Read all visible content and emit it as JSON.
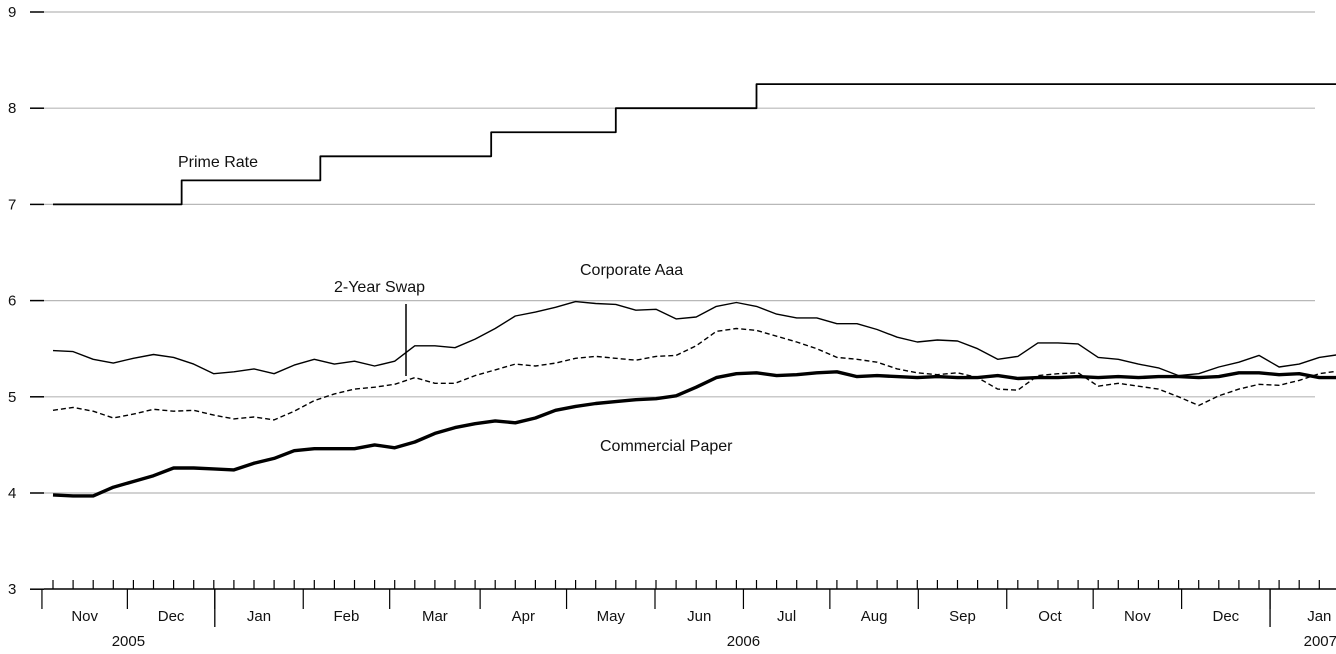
{
  "chart_data": {
    "type": "line",
    "title": "",
    "xlabel": "",
    "ylabel": "",
    "ylim": [
      3,
      9
    ],
    "yticks": [
      "3",
      "4",
      "5",
      "6",
      "7",
      "8",
      "9"
    ],
    "grid": "horizontal",
    "week_count": 67,
    "months": [
      {
        "label": "Nov",
        "start": 0,
        "end": 4.25
      },
      {
        "label": "Dec",
        "start": 4.25,
        "end": 8.6
      },
      {
        "label": "Jan",
        "start": 8.6,
        "end": 13
      },
      {
        "label": "Feb",
        "start": 13,
        "end": 17.3
      },
      {
        "label": "Mar",
        "start": 17.3,
        "end": 21.8
      },
      {
        "label": "Apr",
        "start": 21.8,
        "end": 26.1
      },
      {
        "label": "May",
        "start": 26.1,
        "end": 30.5
      },
      {
        "label": "Jun",
        "start": 30.5,
        "end": 34.9
      },
      {
        "label": "Jul",
        "start": 34.9,
        "end": 39.2
      },
      {
        "label": "Aug",
        "start": 39.2,
        "end": 43.6
      },
      {
        "label": "Sep",
        "start": 43.6,
        "end": 48
      },
      {
        "label": "Oct",
        "start": 48,
        "end": 52.3
      },
      {
        "label": "Nov",
        "start": 52.3,
        "end": 56.7
      },
      {
        "label": "Dec",
        "start": 56.7,
        "end": 61.1
      },
      {
        "label": "Jan",
        "start": 61.1,
        "end": 66
      }
    ],
    "years": [
      {
        "label": "2005",
        "center": 4.3
      },
      {
        "label": "2006",
        "center": 34.9
      },
      {
        "label": "2007",
        "center": 63.6
      }
    ],
    "year_breaks": [
      8.6,
      61.1
    ],
    "series": [
      {
        "name": "Prime Rate",
        "style": "step",
        "color": "#000000",
        "steps": [
          {
            "x": 0,
            "y": 7.0
          },
          {
            "x": 6.4,
            "y": 7.25
          },
          {
            "x": 13.3,
            "y": 7.5
          },
          {
            "x": 21.8,
            "y": 7.75
          },
          {
            "x": 28.0,
            "y": 8.0
          },
          {
            "x": 35.0,
            "y": 8.25
          },
          {
            "x": 65.7,
            "y": 8.25
          }
        ]
      },
      {
        "name": "Corporate Aaa",
        "style": "thin",
        "color": "#000000",
        "values": [
          5.48,
          5.47,
          5.39,
          5.35,
          5.4,
          5.44,
          5.41,
          5.34,
          5.24,
          5.26,
          5.29,
          5.24,
          5.33,
          5.39,
          5.34,
          5.37,
          5.32,
          5.37,
          5.53,
          5.53,
          5.51,
          5.6,
          5.71,
          5.84,
          5.88,
          5.93,
          5.99,
          5.97,
          5.96,
          5.9,
          5.91,
          5.81,
          5.83,
          5.94,
          5.98,
          5.94,
          5.86,
          5.82,
          5.82,
          5.76,
          5.76,
          5.7,
          5.62,
          5.57,
          5.59,
          5.58,
          5.5,
          5.39,
          5.42,
          5.56,
          5.56,
          5.55,
          5.41,
          5.39,
          5.34,
          5.3,
          5.22,
          5.24,
          5.31,
          5.36,
          5.43,
          5.31,
          5.34,
          5.41,
          5.44
        ]
      },
      {
        "name": "2-Year Swap",
        "style": "dashed",
        "color": "#000000",
        "values": [
          4.86,
          4.89,
          4.85,
          4.78,
          4.82,
          4.87,
          4.85,
          4.86,
          4.81,
          4.77,
          4.79,
          4.76,
          4.85,
          4.96,
          5.03,
          5.08,
          5.1,
          5.13,
          5.2,
          5.14,
          5.14,
          5.22,
          5.28,
          5.34,
          5.32,
          5.35,
          5.4,
          5.42,
          5.4,
          5.38,
          5.42,
          5.43,
          5.53,
          5.68,
          5.71,
          5.69,
          5.63,
          5.57,
          5.5,
          5.41,
          5.39,
          5.36,
          5.29,
          5.25,
          5.23,
          5.25,
          5.2,
          5.08,
          5.07,
          5.22,
          5.24,
          5.25,
          5.11,
          5.14,
          5.11,
          5.08,
          5.0,
          4.91,
          5.01,
          5.08,
          5.13,
          5.12,
          5.17,
          5.24,
          5.27
        ]
      },
      {
        "name": "Commercial Paper",
        "style": "thick",
        "color": "#000000",
        "values": [
          3.98,
          3.97,
          3.97,
          4.06,
          4.12,
          4.18,
          4.26,
          4.26,
          4.25,
          4.24,
          4.31,
          4.36,
          4.44,
          4.46,
          4.46,
          4.46,
          4.5,
          4.47,
          4.53,
          4.62,
          4.68,
          4.72,
          4.75,
          4.73,
          4.78,
          4.86,
          4.9,
          4.93,
          4.95,
          4.97,
          4.98,
          5.01,
          5.1,
          5.2,
          5.24,
          5.25,
          5.22,
          5.23,
          5.25,
          5.26,
          5.21,
          5.22,
          5.21,
          5.2,
          5.21,
          5.2,
          5.2,
          5.22,
          5.19,
          5.2,
          5.2,
          5.21,
          5.2,
          5.21,
          5.2,
          5.21,
          5.21,
          5.2,
          5.21,
          5.25,
          5.25,
          5.23,
          5.24,
          5.2,
          5.2
        ]
      }
    ]
  },
  "annotations": {
    "prime_rate": "Prime Rate",
    "corporate_aaa": "Corporate Aaa",
    "swap": "2-Year Swap",
    "commercial_paper": "Commercial Paper"
  }
}
